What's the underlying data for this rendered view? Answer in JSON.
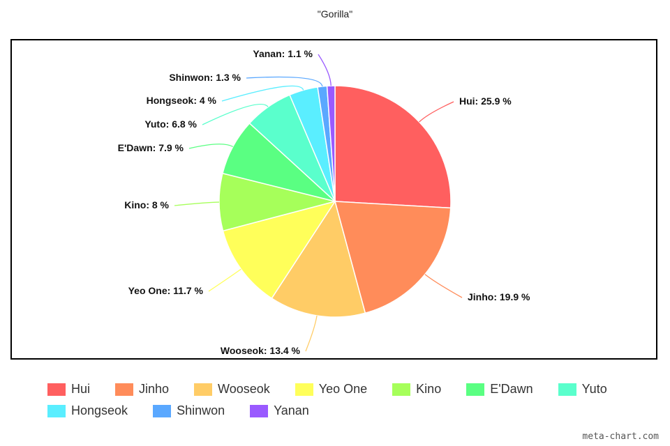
{
  "chart_data": {
    "type": "pie",
    "title": "\"Gorilla\"",
    "slices": [
      {
        "name": "Hui",
        "value": 25.9,
        "label": "Hui: 25.9 %",
        "color": "#ff5f5f"
      },
      {
        "name": "Jinho",
        "value": 19.9,
        "label": "Jinho: 19.9 %",
        "color": "#ff8c5a"
      },
      {
        "name": "Wooseok",
        "value": 13.4,
        "label": "Wooseok: 13.4 %",
        "color": "#ffcc66"
      },
      {
        "name": "Yeo One",
        "value": 11.7,
        "label": "Yeo One: 11.7 %",
        "color": "#ffff5a"
      },
      {
        "name": "Kino",
        "value": 8,
        "label": "Kino: 8 %",
        "color": "#a6ff5a"
      },
      {
        "name": "E'Dawn",
        "value": 7.9,
        "label": "E'Dawn: 7.9 %",
        "color": "#5aff82"
      },
      {
        "name": "Yuto",
        "value": 6.8,
        "label": "Yuto: 6.8 %",
        "color": "#5affcc"
      },
      {
        "name": "Hongseok",
        "value": 4,
        "label": "Hongseok: 4 %",
        "color": "#5aeeff"
      },
      {
        "name": "Shinwon",
        "value": 1.3,
        "label": "Shinwon: 1.3 %",
        "color": "#5aa8ff"
      },
      {
        "name": "Yanan",
        "value": 1.1,
        "label": "Yanan: 1.1 %",
        "color": "#9a5aff"
      }
    ],
    "legend_position": "bottom"
  },
  "brand": "meta-chart.com"
}
